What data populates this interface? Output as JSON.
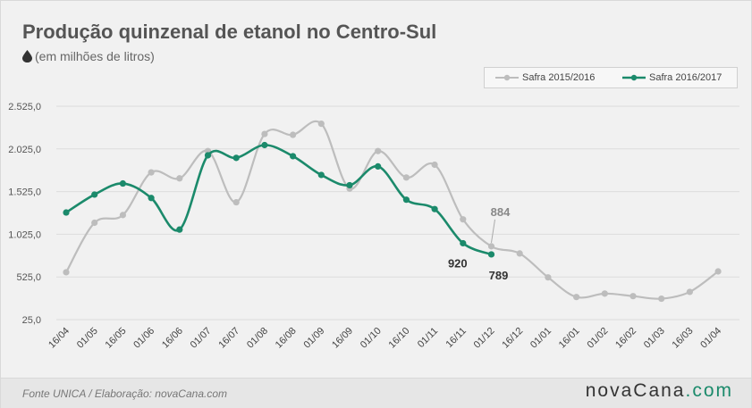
{
  "title": "Produção quinzenal de etanol no Centro-Sul",
  "subtitle": "(em milhões de litros)",
  "footer": {
    "source": "Fonte UNICA / Elaboração: novaCana.com",
    "brand_main": "novaCana",
    "brand_suffix": ".com"
  },
  "colors": {
    "series_2015": "#bdbdbd",
    "series_2016": "#1b8a6b",
    "accent": "#1b8a6b"
  },
  "chart_data": {
    "type": "line",
    "title": "Produção quinzenal de etanol no Centro-Sul",
    "subtitle": "(em milhões de litros)",
    "ylabel": "",
    "xlabel": "",
    "ylim": [
      25,
      2525
    ],
    "yticks": [
      "2.525,0",
      "2.025,0",
      "1.525,0",
      "1.025,0",
      "525,0",
      "25,0"
    ],
    "ytick_values": [
      2525,
      2025,
      1525,
      1025,
      525,
      25
    ],
    "grid": true,
    "legend_position": "top-right",
    "categories": [
      "16/04",
      "01/05",
      "16/05",
      "01/06",
      "16/06",
      "01/07",
      "16/07",
      "01/08",
      "16/08",
      "01/09",
      "16/09",
      "01/10",
      "16/10",
      "01/11",
      "16/11",
      "01/12",
      "16/12",
      "01/01",
      "16/01",
      "01/02",
      "16/02",
      "01/03",
      "16/03",
      "01/04"
    ],
    "series": [
      {
        "name": "Safra 2015/2016",
        "color": "#bdbdbd",
        "values": [
          580,
          1160,
          1250,
          1750,
          1680,
          2000,
          1400,
          2200,
          2190,
          2320,
          1560,
          2000,
          1690,
          1840,
          1200,
          884,
          800,
          520,
          290,
          330,
          300,
          270,
          350,
          590
        ]
      },
      {
        "name": "Safra 2016/2017",
        "color": "#1b8a6b",
        "values": [
          1280,
          1490,
          1620,
          1450,
          1080,
          1950,
          1920,
          2070,
          1940,
          1720,
          1600,
          1820,
          1430,
          1320,
          920,
          789,
          null,
          null,
          null,
          null,
          null,
          null,
          null,
          null
        ]
      }
    ],
    "annotations": [
      {
        "series": "Safra 2015/2016",
        "category": "01/12",
        "text": "884"
      },
      {
        "series": "Safra 2016/2017",
        "category": "16/11",
        "text": "920"
      },
      {
        "series": "Safra 2016/2017",
        "category": "01/12",
        "text": "789"
      }
    ]
  }
}
